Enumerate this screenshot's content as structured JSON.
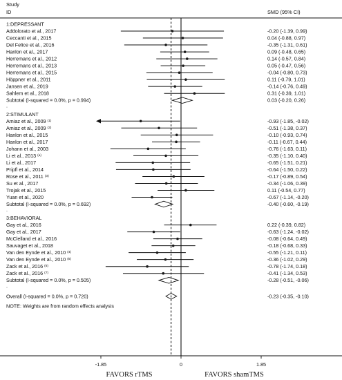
{
  "chart_data": {
    "type": "forest",
    "header": {
      "study_line1": "Study",
      "study_line2": "ID",
      "effect_col": "SMD (95% CI)"
    },
    "groups": [
      {
        "name": "1:DEPRESSANT",
        "studies": [
          {
            "label": "Addolorato et al., 2017",
            "sup": "",
            "smd": -0.2,
            "lo": -1.39,
            "hi": 0.99,
            "text": "-0.20 (-1.39, 0.99)"
          },
          {
            "label": "Ceccanti et al., 2015",
            "sup": "",
            "smd": 0.04,
            "lo": -0.88,
            "hi": 0.97,
            "text": "0.04 (-0.88, 0.97)"
          },
          {
            "label": "Del Felice et al., 2016",
            "sup": "",
            "smd": -0.35,
            "lo": -1.31,
            "hi": 0.61,
            "text": "-0.35 (-1.31, 0.61)"
          },
          {
            "label": "Hanlon et al., 2017",
            "sup": "",
            "smd": 0.09,
            "lo": -0.48,
            "hi": 0.65,
            "text": "0.09 (-0.48, 0.65)"
          },
          {
            "label": "Herremans et al., 2012",
            "sup": "",
            "smd": 0.14,
            "lo": -0.57,
            "hi": 0.84,
            "text": "0.14 (-0.57, 0.84)"
          },
          {
            "label": "Herremans et al., 2013",
            "sup": "",
            "smd": 0.05,
            "lo": -0.47,
            "hi": 0.56,
            "text": "0.05 (-0.47, 0.56)"
          },
          {
            "label": "Herremans et al., 2015",
            "sup": "",
            "smd": -0.04,
            "lo": -0.8,
            "hi": 0.73,
            "text": "-0.04 (-0.80, 0.73)"
          },
          {
            "label": "Höppner et al., 2011",
            "sup": "",
            "smd": 0.11,
            "lo": -0.79,
            "hi": 1.01,
            "text": "0.11 (-0.79, 1.01)"
          },
          {
            "label": "Jansen et al., 2019",
            "sup": "",
            "smd": -0.14,
            "lo": -0.76,
            "hi": 0.49,
            "text": "-0.14 (-0.76, 0.49)"
          },
          {
            "label": "Sahlem et al., 2018",
            "sup": "",
            "smd": 0.31,
            "lo": -0.39,
            "hi": 1.01,
            "text": "0.31 (-0.39, 1.01)"
          }
        ],
        "subtotal": {
          "label": "Subtotal  (I-squared = 0.0%, p = 0.994)",
          "smd": 0.03,
          "lo": -0.2,
          "hi": 0.26,
          "text": "0.03 (-0.20, 0.26)"
        }
      },
      {
        "name": "2:STIMULANT",
        "studies": [
          {
            "label": "Amiaz et al., 2009",
            "sup": "(1)",
            "smd": -0.93,
            "lo": -1.85,
            "hi": -0.02,
            "text": "-0.93 (-1.85, -0.02)",
            "arrow_left": true
          },
          {
            "label": "Amiaz et al., 2009",
            "sup": "(2)",
            "smd": -0.51,
            "lo": -1.38,
            "hi": 0.37,
            "text": "-0.51 (-1.38, 0.37)"
          },
          {
            "label": "Hanlon et al., 2015",
            "sup": "",
            "smd": -0.1,
            "lo": -0.93,
            "hi": 0.74,
            "text": "-0.10 (-0.93, 0.74)"
          },
          {
            "label": "Hanlon et al., 2017",
            "sup": "",
            "smd": -0.11,
            "lo": -0.67,
            "hi": 0.44,
            "text": "-0.11 (-0.67, 0.44)"
          },
          {
            "label": "Johann et al., 2003",
            "sup": "",
            "smd": -0.76,
            "lo": -1.63,
            "hi": 0.11,
            "text": "-0.76 (-1.63, 0.11)"
          },
          {
            "label": "Li et al., 2013",
            "sup": "(a)",
            "smd": -0.35,
            "lo": -1.1,
            "hi": 0.4,
            "text": "-0.35 (-1.10, 0.40)"
          },
          {
            "label": "Li et al., 2017",
            "sup": "",
            "smd": -0.65,
            "lo": -1.51,
            "hi": 0.21,
            "text": "-0.65 (-1.51, 0.21)"
          },
          {
            "label": "Pripfl et al., 2014",
            "sup": "",
            "smd": -0.64,
            "lo": -1.5,
            "hi": 0.22,
            "text": "-0.64 (-1.50, 0.22)"
          },
          {
            "label": "Rose et al., 2011",
            "sup": "(3)",
            "smd": -0.17,
            "lo": -0.89,
            "hi": 0.54,
            "text": "-0.17 (-0.89, 0.54)"
          },
          {
            "label": "Su et al., 2017",
            "sup": "",
            "smd": -0.34,
            "lo": -1.06,
            "hi": 0.39,
            "text": "-0.34 (-1.06, 0.39)"
          },
          {
            "label": "Trojak et al., 2015",
            "sup": "",
            "smd": 0.11,
            "lo": -0.54,
            "hi": 0.77,
            "text": "0.11 (-0.54, 0.77)"
          },
          {
            "label": "Yuan et al., 2020",
            "sup": "",
            "smd": -0.67,
            "lo": -1.14,
            "hi": -0.2,
            "text": "-0.67 (-1.14, -0.20)"
          }
        ],
        "subtotal": {
          "label": "Subtotal  (I-squared = 0.0%, p = 0.692)",
          "smd": -0.4,
          "lo": -0.6,
          "hi": -0.19,
          "text": "-0.40 (-0.60, -0.19)"
        }
      },
      {
        "name": "3:BEHAVIORAL",
        "studies": [
          {
            "label": "Gay et al., 2016",
            "sup": "",
            "smd": 0.22,
            "lo": -0.39,
            "hi": 0.82,
            "text": "0.22 (-0.39, 0.82)"
          },
          {
            "label": "Gay et al., 2017",
            "sup": "",
            "smd": -0.63,
            "lo": -1.24,
            "hi": -0.02,
            "text": "-0.63 (-1.24, -0.02)"
          },
          {
            "label": "McClelland et al., 2016",
            "sup": "",
            "smd": -0.08,
            "lo": -0.64,
            "hi": 0.49,
            "text": "-0.08 (-0.64, 0.49)"
          },
          {
            "label": "Sauvaget et al., 2018",
            "sup": "",
            "smd": -0.18,
            "lo": -0.68,
            "hi": 0.33,
            "text": "-0.18 (-0.68, 0.33)"
          },
          {
            "label": "Van den Eynde et al., 2010",
            "sup": "(4)",
            "smd": -0.55,
            "lo": -1.21,
            "hi": 0.11,
            "text": "-0.55 (-1.21, 0.11)"
          },
          {
            "label": "Van den Eynde et al., 2010",
            "sup": "(5)",
            "smd": -0.36,
            "lo": -1.02,
            "hi": 0.29,
            "text": "-0.36 (-1.02, 0.29)"
          },
          {
            "label": "Zack et al., 2016",
            "sup": "(6)",
            "smd": -0.78,
            "lo": -1.74,
            "hi": 0.18,
            "text": "-0.78 (-1.74, 0.18)"
          },
          {
            "label": "Zack et al., 2016",
            "sup": "(7)",
            "smd": -0.41,
            "lo": -1.34,
            "hi": 0.53,
            "text": "-0.41 (-1.34, 0.53)"
          }
        ],
        "subtotal": {
          "label": "Subtotal  (I-squared = 0.0%, p = 0.505)",
          "smd": -0.28,
          "lo": -0.51,
          "hi": -0.06,
          "text": "-0.28 (-0.51, -0.06)"
        }
      }
    ],
    "overall": {
      "label": "Overall  (I-squared = 0.0%, p = 0.720)",
      "smd": -0.23,
      "lo": -0.35,
      "hi": -0.1,
      "text": "-0.23 (-0.35, -0.10)"
    },
    "note": "NOTE: Weights are from random effects analysis",
    "xticks": [
      {
        "value": -1.85,
        "label": "-1.85"
      },
      {
        "value": 0,
        "label": "0"
      },
      {
        "value": 1.85,
        "label": "1.85"
      }
    ],
    "xlim": [
      -1.85,
      1.85
    ],
    "xlabel_left": "FAVORS rTMS",
    "xlabel_right": "FAVORS shamTMS",
    "colors": {
      "ink": "#111111",
      "dot": "#1a1a1a"
    }
  }
}
